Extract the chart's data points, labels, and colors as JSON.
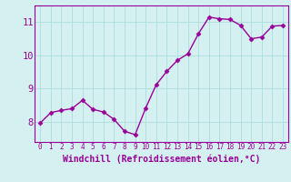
{
  "x": [
    0,
    1,
    2,
    3,
    4,
    5,
    6,
    7,
    8,
    9,
    10,
    11,
    12,
    13,
    14,
    15,
    16,
    17,
    18,
    19,
    20,
    21,
    22,
    23
  ],
  "y": [
    7.97,
    8.28,
    8.35,
    8.4,
    8.65,
    8.38,
    8.3,
    8.08,
    7.72,
    7.62,
    8.42,
    9.12,
    9.52,
    9.85,
    10.05,
    10.65,
    11.15,
    11.1,
    11.08,
    10.9,
    10.5,
    10.55,
    10.88,
    10.9
  ],
  "line_color": "#990099",
  "marker": "D",
  "markersize": 2.5,
  "linewidth": 1.0,
  "xlabel": "Windchill (Refroidissement éolien,°C)",
  "xlabel_fontsize": 7,
  "background_color": "#d4f0f0",
  "grid_color": "#aadddd",
  "yticks": [
    8,
    9,
    10,
    11
  ],
  "ylim": [
    7.4,
    11.5
  ],
  "xlim": [
    -0.5,
    23.5
  ],
  "xtick_fontsize": 5.5,
  "ytick_fontsize": 7.5,
  "label_color": "#990099"
}
